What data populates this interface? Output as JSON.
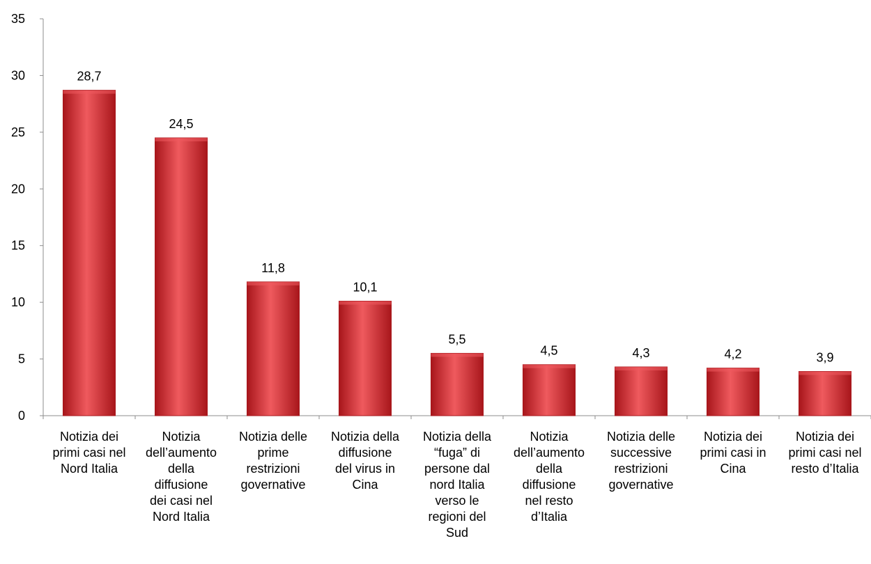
{
  "chart_data": {
    "type": "bar",
    "categories": [
      [
        "Notizia dei",
        "primi casi nel",
        "Nord Italia"
      ],
      [
        "Notizia",
        "dell’aumento",
        "della",
        "diffusione",
        "dei casi nel",
        "Nord Italia"
      ],
      [
        "Notizia delle",
        "prime",
        "restrizioni",
        "governative"
      ],
      [
        "Notizia della",
        "diffusione",
        "del virus in",
        "Cina"
      ],
      [
        "Notizia della",
        "“fuga” di",
        "persone dal",
        "nord Italia",
        "verso le",
        "regioni del",
        "Sud"
      ],
      [
        "Notizia",
        "dell’aumento",
        "della",
        "diffusione",
        "nel resto",
        "d’Italia"
      ],
      [
        "Notizia delle",
        "successive",
        "restrizioni",
        "governative"
      ],
      [
        "Notizia dei",
        "primi casi in",
        "Cina"
      ],
      [
        "Notizia dei",
        "primi casi nel",
        "resto d’Italia"
      ]
    ],
    "values": [
      28.7,
      24.5,
      11.8,
      10.1,
      5.5,
      4.5,
      4.3,
      4.2,
      3.9
    ],
    "value_labels": [
      "28,7",
      "24,5",
      "11,8",
      "10,1",
      "5,5",
      "4,5",
      "4,3",
      "4,2",
      "3,9"
    ],
    "yticks": [
      0,
      5,
      10,
      15,
      20,
      25,
      30,
      35
    ],
    "ylim": [
      0,
      35
    ],
    "grid": false,
    "legend": "none",
    "title": "",
    "xlabel": "",
    "ylabel": "",
    "bar_color": "#d42a2f",
    "bar_light": "#ef5a5e",
    "bar_dark": "#a8161b",
    "axis_color": "#8c8c8c"
  }
}
